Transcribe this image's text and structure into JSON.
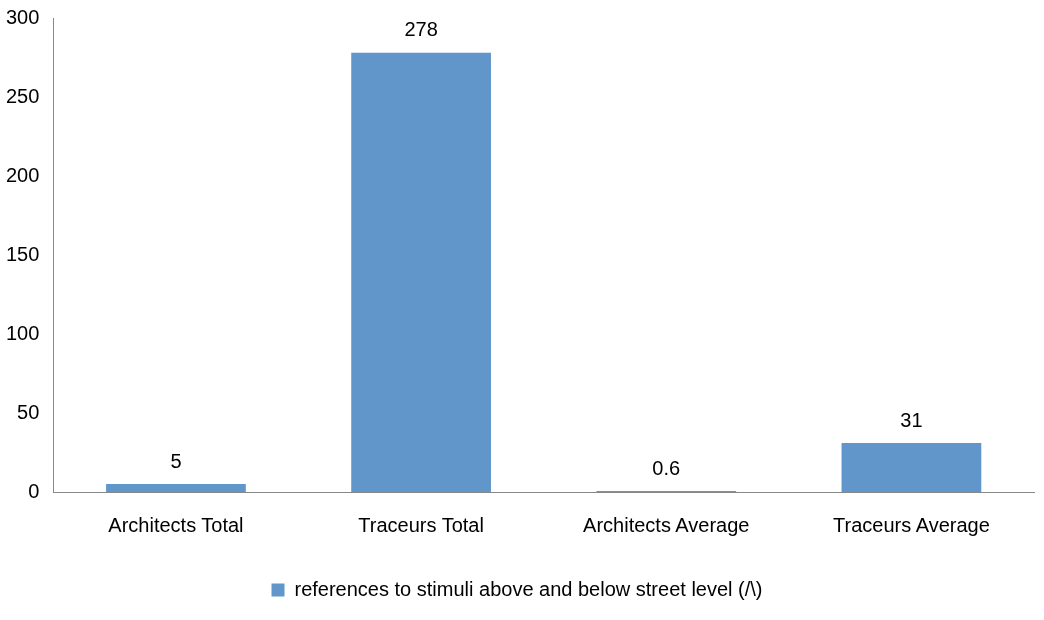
{
  "chart_data": {
    "type": "bar",
    "categories": [
      "Architects Total",
      "Traceurs Total",
      "Architects Average",
      "Traceurs Average"
    ],
    "series": [
      {
        "name": "references to stimuli above and below street level (/\\)",
        "color": "#6096c9",
        "values": [
          5,
          278,
          0.6,
          31
        ]
      }
    ],
    "ylim": [
      0,
      300
    ],
    "yticks": [
      0,
      50,
      100,
      150,
      200,
      250,
      300
    ],
    "grid": false,
    "legend": "bottom",
    "data_labels": true
  }
}
